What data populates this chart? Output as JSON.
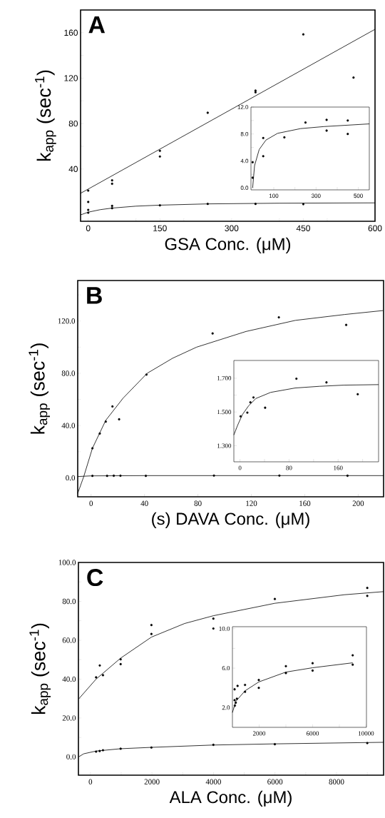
{
  "chart_data": [
    {
      "type": "scatter",
      "xlabel": "GSA Conc. (μM)",
      "ylabel": "k$_{app}$ (sec$^{-1}$)",
      "annotations": [
        "A"
      ],
      "xlim": [
        -16,
        600
      ],
      "ylim": [
        -6,
        180
      ],
      "xticks": [
        0,
        {
          "value": 100,
          "label": null
        },
        150,
        {
          "value": 200,
          "label": null
        },
        300,
        {
          "value": 400,
          "label": null
        },
        450,
        {
          "value": 500,
          "label": null
        },
        600
      ],
      "yticks": [
        {
          "value": 20,
          "label": null
        },
        40,
        {
          "value": 60,
          "label": null
        },
        80,
        {
          "value": 100,
          "label": null
        },
        120,
        {
          "value": 140,
          "label": null
        },
        160
      ],
      "series": [
        {
          "type": "scatter",
          "color": "#000000",
          "x": [
            0,
            0,
            50,
            50,
            150,
            150,
            250,
            350,
            350,
            450,
            555
          ],
          "values": [
            21,
            11,
            30,
            27,
            56,
            51,
            89.5,
            109,
            107.5,
            158.5,
            120.5
          ]
        },
        {
          "type": "scatter",
          "color": "#000000",
          "x": [
            0,
            0,
            50,
            50,
            150,
            250,
            350,
            450
          ],
          "values": [
            4,
            1.5,
            7.5,
            5.5,
            8,
            9.3,
            9.3,
            9
          ]
        },
        {
          "type": "line",
          "color": "#000000",
          "x": [
            -16,
            600
          ],
          "values": [
            18.6,
            163
          ]
        },
        {
          "type": "line",
          "color": "#000000",
          "x": [
            -16,
            0,
            25,
            50,
            100,
            150,
            250,
            400,
            600
          ],
          "values": [
            -0.4,
            2,
            4.2,
            5.6,
            7.3,
            8.2,
            9.3,
            9.9,
            10.2
          ]
        }
      ]
    },
    {
      "type": "scatter",
      "xlim": [
        -8,
        552
      ],
      "ylim": [
        -0.3,
        12
      ],
      "xticks": [
        100,
        {
          "value": 200,
          "label": null
        },
        300,
        {
          "value": 400,
          "label": null
        },
        500
      ],
      "yticks": [
        {
          "value": 0,
          "label": "0.0"
        },
        {
          "value": 2,
          "label": null
        },
        {
          "value": 4,
          "label": "4.0"
        },
        {
          "value": 6,
          "label": null
        },
        {
          "value": 8,
          "label": "8.0"
        },
        {
          "value": 10,
          "label": null
        },
        {
          "value": 12,
          "label": "12.0"
        }
      ],
      "series": [
        {
          "type": "scatter",
          "color": "#000000",
          "x": [
            0,
            0,
            50,
            50,
            150,
            250,
            350,
            350,
            450,
            450
          ],
          "values": [
            3.8,
            1.5,
            7.4,
            4.7,
            7.5,
            9.7,
            10.1,
            8.5,
            10.0,
            8.0
          ]
        },
        {
          "type": "line",
          "color": "#000000",
          "x": [
            0,
            9,
            31,
            63,
            118,
            227,
            337,
            552
          ],
          "values": [
            0,
            3.3,
            5.7,
            7.1,
            8.1,
            8.8,
            9.1,
            9.5
          ]
        }
      ]
    },
    {
      "type": "scatter",
      "xlabel": "(s) DAVA Conc. (μM)",
      "ylabel": "k$_{app}$ (sec$^{-1}$)",
      "annotations": [
        "B"
      ],
      "xlim": [
        -10,
        219
      ],
      "ylim": [
        -14.5,
        151
      ],
      "xticks": [
        0,
        40,
        80,
        120,
        160,
        200
      ],
      "yticks": [
        {
          "value": 0,
          "label": "0.0"
        },
        {
          "value": 20,
          "label": null
        },
        {
          "value": 40,
          "label": "40.0"
        },
        {
          "value": 60,
          "label": null
        },
        {
          "value": 80,
          "label": "80.0"
        },
        {
          "value": 100,
          "label": null
        },
        {
          "value": 120,
          "label": "120.0"
        },
        {
          "value": 140,
          "label": null
        }
      ],
      "series": [
        {
          "type": "scatter",
          "color": "#000000",
          "x": [
            1,
            6.5,
            11,
            16,
            21,
            41.5,
            91,
            140.6,
            191
          ],
          "values": [
            22.6,
            33.9,
            43,
            54.6,
            44.8,
            79,
            110.5,
            122.8,
            117
          ]
        },
        {
          "type": "scatter",
          "color": "#000000",
          "x": [
            1,
            12,
            17,
            22,
            41,
            92,
            141,
            192
          ],
          "values": [
            1.5,
            1.5,
            1.6,
            1.6,
            1.5,
            1.7,
            1.7,
            1.6
          ]
        },
        {
          "type": "line",
          "color": "#000000",
          "x": [
            -10,
            -5.5,
            1,
            11,
            24,
            42,
            61,
            79,
            116,
            153,
            190,
            218.5
          ],
          "values": [
            -11.9,
            0.9,
            22.6,
            44,
            61,
            80,
            91.5,
            100,
            112,
            120.5,
            125,
            128
          ]
        },
        {
          "type": "line",
          "color": "#000000",
          "x": [
            -10,
            0,
            40,
            219
          ],
          "values": [
            1.0,
            1.5,
            1.7,
            1.7
          ]
        }
      ]
    },
    {
      "type": "scatter",
      "xlim": [
        -10,
        226
      ],
      "ylim": [
        1.205,
        1.805
      ],
      "xticks": [
        0,
        {
          "value": 40,
          "label": null
        },
        80,
        {
          "value": 120,
          "label": null
        },
        160,
        {
          "value": 200,
          "label": null
        }
      ],
      "yticks": [
        {
          "value": 1.3,
          "label": "1.300"
        },
        {
          "value": 1.4,
          "label": null
        },
        {
          "value": 1.5,
          "label": "1.500"
        },
        {
          "value": 1.6,
          "label": null
        },
        {
          "value": 1.7,
          "label": "1.700"
        }
      ],
      "series": [
        {
          "type": "scatter",
          "color": "#000000",
          "x": [
            1,
            12,
            17,
            22,
            41,
            92,
            141,
            192
          ],
          "values": [
            1.474,
            1.496,
            1.557,
            1.586,
            1.525,
            1.697,
            1.675,
            1.605
          ]
        },
        {
          "type": "line",
          "color": "#000000",
          "x": [
            -10,
            -4,
            4,
            14,
            26,
            50,
            90,
            130,
            170,
            226
          ],
          "values": [
            1.364,
            1.42,
            1.485,
            1.536,
            1.58,
            1.616,
            1.642,
            1.652,
            1.659,
            1.662
          ]
        }
      ]
    },
    {
      "type": "scatter",
      "xlabel": "ALA Conc. (μM)",
      "ylabel": "k$_{app}$ (sec$^{-1}$)",
      "annotations": [
        "C"
      ],
      "xlim": [
        -390,
        9530
      ],
      "ylim": [
        -9.4,
        100
      ],
      "xticks": [
        0,
        {
          "value": 1000,
          "label": null
        },
        2000,
        {
          "value": 3000,
          "label": null
        },
        4000,
        {
          "value": 5000,
          "label": null
        },
        6000,
        {
          "value": 7000,
          "label": null
        },
        8000,
        {
          "value": 9000,
          "label": null
        }
      ],
      "yticks": [
        {
          "value": 0,
          "label": "0.0"
        },
        {
          "value": 10,
          "label": null
        },
        {
          "value": 20,
          "label": "20.0"
        },
        {
          "value": 30,
          "label": null
        },
        {
          "value": 40,
          "label": "40.0"
        },
        {
          "value": 50,
          "label": null
        },
        {
          "value": 60,
          "label": "60.0"
        },
        {
          "value": 70,
          "label": null
        },
        {
          "value": 80,
          "label": "80.0"
        },
        {
          "value": 90,
          "label": null
        },
        {
          "value": 100,
          "label": "100.0"
        }
      ],
      "series": [
        {
          "type": "scatter",
          "color": "#000000",
          "x": [
            184,
            304,
            408,
            983,
            983,
            1983,
            1983,
            3997,
            3997,
            5995,
            9000,
            9000
          ],
          "values": [
            40.9,
            47,
            42,
            50.2,
            47.7,
            67.8,
            63.2,
            71.1,
            66,
            81.2,
            86.9,
            82.8
          ]
        },
        {
          "type": "scatter",
          "color": "#000000",
          "x": [
            184,
            300,
            408,
            983,
            1983,
            3997,
            5995,
            9000
          ],
          "values": [
            2.7,
            3.0,
            3.4,
            4.2,
            4.8,
            6.2,
            6.5,
            7.1
          ]
        },
        {
          "type": "line",
          "color": "#000000",
          "x": [
            -376,
            184,
            983,
            1983,
            3061,
            3997,
            5995,
            8256,
            9530
          ],
          "values": [
            29.9,
            40,
            50.8,
            61.6,
            68.6,
            72.6,
            79,
            83.4,
            85
          ]
        },
        {
          "type": "line",
          "color": "#000000",
          "x": [
            -376,
            -216,
            184,
            983,
            1983,
            3997,
            5995,
            9530
          ],
          "values": [
            0.1,
            1.6,
            3.0,
            4.2,
            4.9,
            6.1,
            6.7,
            7.5
          ]
        }
      ]
    },
    {
      "type": "scatter",
      "xlim": [
        0,
        10030
      ],
      "ylim": [
        0,
        10.2
      ],
      "xticks": [
        2000,
        {
          "value": 4000,
          "label": null
        },
        6000,
        {
          "value": 8000,
          "label": null
        },
        10000
      ],
      "yticks": [
        {
          "value": 2,
          "label": "2.0"
        },
        {
          "value": 4,
          "label": null
        },
        {
          "value": 6,
          "label": "6.0"
        },
        {
          "value": 8,
          "label": null
        },
        {
          "value": 10,
          "label": "10.0"
        }
      ],
      "series": [
        {
          "type": "scatter",
          "color": "#000000",
          "x": [
            163,
            386,
            943,
            1973,
            1973,
            163,
            249,
            335,
            186,
            943,
            4000,
            4000,
            6000,
            6000,
            9000,
            9000
          ],
          "values": [
            3.85,
            4.2,
            4.3,
            4.8,
            4.0,
            2.75,
            2.5,
            2.9,
            2.2,
            3.6,
            6.2,
            5.5,
            6.5,
            5.75,
            7.3,
            6.35
          ]
        },
        {
          "type": "line",
          "color": "#000000",
          "x": [
            0,
            257,
            943,
            1973,
            4000,
            6000,
            9000
          ],
          "values": [
            1.5,
            2.64,
            3.7,
            4.6,
            5.6,
            6.04,
            6.54
          ]
        }
      ]
    }
  ]
}
